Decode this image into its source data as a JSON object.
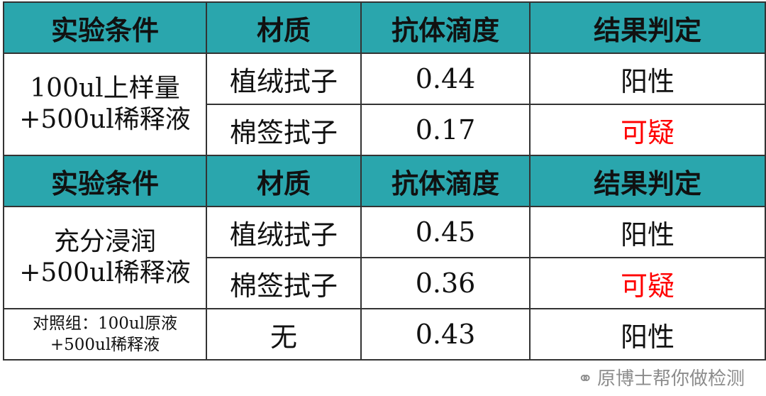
{
  "headers": [
    "实验条件",
    "材质",
    "抗体滴度",
    "结果判定"
  ],
  "section1": {
    "condition_line1": "100ul上样量",
    "condition_line2": "+500ul稀释液",
    "rows": [
      {
        "material": "植绒拭子",
        "titer": "0.44",
        "result": "阳性"
      },
      {
        "material": "棉签拭子",
        "titer": "0.17",
        "result": "可疑"
      }
    ]
  },
  "section2": {
    "condition_line1": "充分浸润",
    "condition_line2": "+500ul稀释液",
    "rows": [
      {
        "material": "植绒拭子",
        "titer": "0.45",
        "result": "阳性"
      },
      {
        "material": "棉签拭子",
        "titer": "0.36",
        "result": "可疑"
      }
    ]
  },
  "control": {
    "condition_line1": "对照组：100ul原液",
    "condition_line2": "+500ul稀释液",
    "material": "无",
    "titer": "0.43",
    "result": "阳性"
  },
  "watermark": {
    "icon": "wechat-icon",
    "text": "原博士帮你做检测"
  },
  "colors": {
    "header": "#2aa6ad",
    "suspicious": "#ff0000"
  }
}
